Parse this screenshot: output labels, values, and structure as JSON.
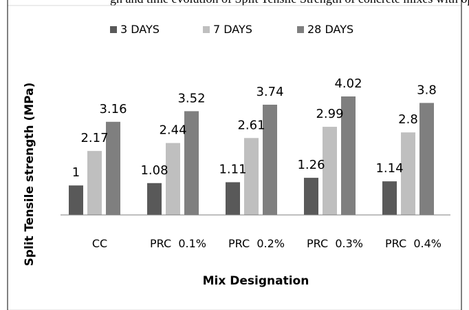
{
  "caption_fragment": "gh and time evolution of Split Tensile Strength of concrete mixes with optimum percentage",
  "chart_data": {
    "type": "bar",
    "title": "",
    "xlabel": "Mix Designation",
    "ylabel": "Split Tensile strength  (MPa)",
    "categories": [
      "CC",
      "PRC  0.1%",
      "PRC  0.2%",
      "PRC  0.3%",
      "PRC  0.4%"
    ],
    "series": [
      {
        "name": "3 DAYS",
        "values": [
          1,
          1.08,
          1.11,
          1.26,
          1.14
        ],
        "color": "#595959"
      },
      {
        "name": "7 DAYS",
        "values": [
          2.17,
          2.44,
          2.61,
          2.99,
          2.8
        ],
        "color": "#bfbfbf"
      },
      {
        "name": "28 DAYS",
        "values": [
          3.16,
          3.52,
          3.74,
          4.02,
          3.8
        ],
        "color": "#7f7f7f"
      }
    ],
    "data_labels": [
      [
        "1",
        "1.08",
        "1.11",
        "1.26",
        "1.14"
      ],
      [
        "2.17",
        "2.44",
        "2.61",
        "2.99",
        "2.8"
      ],
      [
        "3.16",
        "3.52",
        "3.74",
        "4.02",
        "3.8"
      ]
    ],
    "ylim": [
      0,
      4.02
    ],
    "grid": false,
    "legend_position": "top"
  }
}
